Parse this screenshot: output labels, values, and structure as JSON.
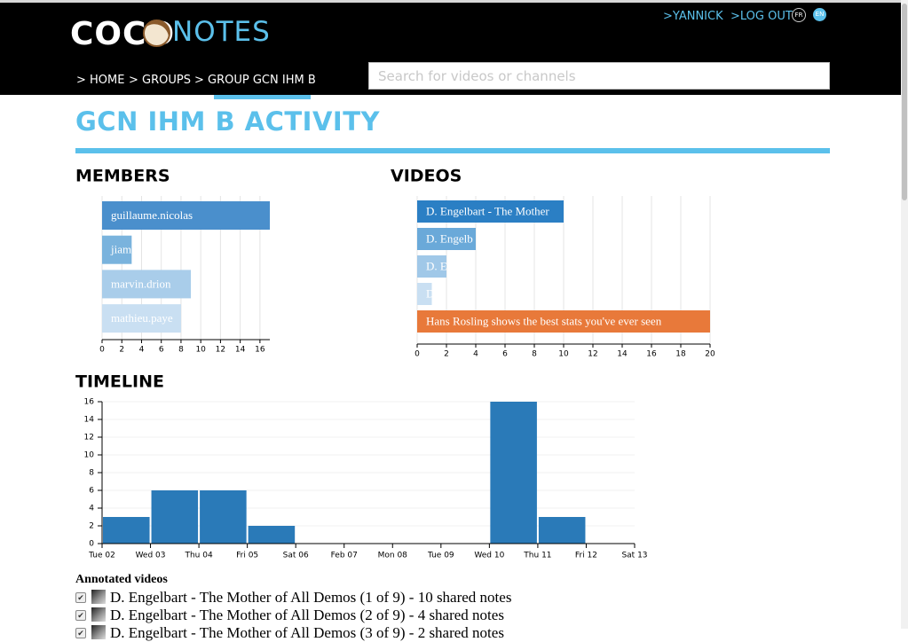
{
  "header": {
    "logo_left": "COCO",
    "logo_right": "NOTES",
    "user": ">YANNICK",
    "logout": ">LOG OUT",
    "languages": [
      "FR",
      "EN"
    ],
    "nav": [
      "> HOME",
      "> GROUPS",
      "> GROUP GCN IHM B"
    ],
    "search_placeholder": "Search for videos or channels"
  },
  "page_title": "GCN IHM B ACTIVITY",
  "chart_data": [
    {
      "type": "bar",
      "orientation": "horizontal",
      "title": "MEMBERS",
      "categories": [
        "guillaume.nicolas",
        "jiam",
        "marvin.drion",
        "mathieu.paye"
      ],
      "values": [
        17,
        3,
        9,
        8
      ],
      "colors": [
        "#4a8fcc",
        "#7ab3dd",
        "#a9cdea",
        "#c9dff2"
      ],
      "xlim": [
        0,
        17
      ],
      "xticks": [
        0,
        2,
        4,
        6,
        8,
        10,
        12,
        14,
        16
      ],
      "grid": true
    },
    {
      "type": "bar",
      "orientation": "horizontal",
      "title": "VIDEOS",
      "categories": [
        "D. Engelbart - The Mother",
        "D. Engelb",
        "D. E",
        "D",
        "Hans Rosling shows the best stats you've ever seen"
      ],
      "values": [
        10,
        4,
        2,
        1,
        20
      ],
      "colors": [
        "#2b7fc4",
        "#6aa9d9",
        "#a0c8e8",
        "#c9dff2",
        "#e8793a"
      ],
      "xlim": [
        0,
        20
      ],
      "xticks": [
        0,
        2,
        4,
        6,
        8,
        10,
        12,
        14,
        16,
        18,
        20
      ],
      "grid": true
    },
    {
      "type": "histogram",
      "title": "TIMELINE",
      "bins": [
        "Tue 02",
        "Wed 03",
        "Thu 04",
        "Fri 05",
        "Sat 06",
        "Feb 07",
        "Mon 08",
        "Tue 09",
        "Wed 10",
        "Thu 11",
        "Fri 12",
        "Sat 13"
      ],
      "values": [
        3,
        6,
        6,
        2,
        0,
        0,
        0,
        0,
        16,
        3,
        0
      ],
      "color": "#2a7ab8",
      "ylim": [
        0,
        16
      ],
      "yticks": [
        0,
        2,
        4,
        6,
        8,
        10,
        12,
        14,
        16
      ],
      "grid": true
    }
  ],
  "annotated": {
    "title": "Annotated videos",
    "items": [
      "D. Engelbart - The Mother of All Demos (1 of 9) - 10 shared notes",
      "D. Engelbart - The Mother of All Demos (2 of 9) - 4 shared notes",
      "D. Engelbart - The Mother of All Demos (3 of 9) - 2 shared notes"
    ]
  }
}
